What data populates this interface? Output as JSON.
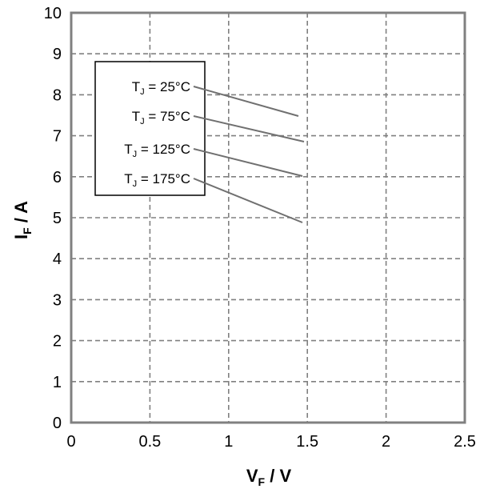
{
  "chart_data": {
    "type": "line",
    "xlabel": {
      "main": "V",
      "sub": "F",
      "unit": " / V"
    },
    "ylabel": {
      "main": "I",
      "sub": "F",
      "unit": " / A"
    },
    "xlim": [
      0,
      2.5
    ],
    "ylim": [
      0,
      10
    ],
    "x_ticks": [
      "0",
      "0.5",
      "1",
      "1.5",
      "2",
      "2.5"
    ],
    "y_ticks": [
      "0",
      "1",
      "2",
      "3",
      "4",
      "5",
      "6",
      "7",
      "8",
      "9",
      "10"
    ],
    "grid": true,
    "grid_style": "dashed",
    "colors": {
      "axis": "#808080",
      "grid": "#808080",
      "series": "#707070"
    },
    "legend": {
      "placement": "top-left",
      "entries": [
        {
          "prefix": "T",
          "sub": "J",
          "suffix": " = 25°C"
        },
        {
          "prefix": "T",
          "sub": "J",
          "suffix": " = 75°C"
        },
        {
          "prefix": "T",
          "sub": "J",
          "suffix": " = 125°C"
        },
        {
          "prefix": "T",
          "sub": "J",
          "suffix": " = 175°C"
        }
      ]
    },
    "series": [
      {
        "values": []
      },
      {
        "values": []
      },
      {
        "values": []
      },
      {
        "values": []
      }
    ]
  }
}
